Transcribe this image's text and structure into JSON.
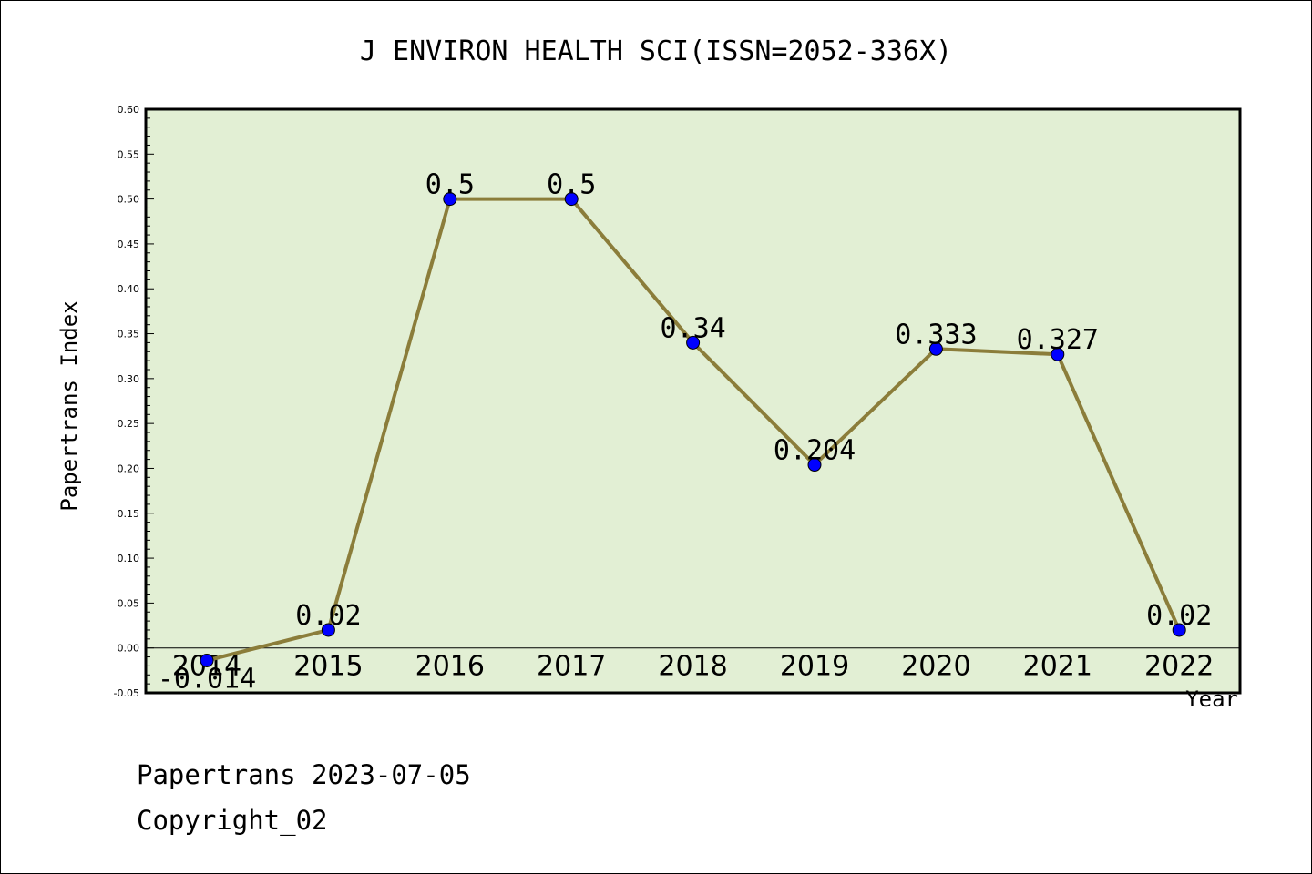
{
  "chart_data": {
    "type": "line",
    "title": "J ENVIRON HEALTH SCI(ISSN=2052-336X)",
    "xlabel": "Year",
    "ylabel": "Papertrans Index",
    "categories": [
      "2014",
      "2015",
      "2016",
      "2017",
      "2018",
      "2019",
      "2020",
      "2021",
      "2022"
    ],
    "series": [
      {
        "values": [
          -0.014,
          0.02,
          0.5,
          0.5,
          0.34,
          0.204,
          0.333,
          0.327,
          0.02
        ],
        "labels": [
          "-0.014",
          "0.02",
          "0.5",
          "0.5",
          "0.34",
          "0.204",
          "0.333",
          "0.327",
          "0.02"
        ]
      }
    ],
    "ylim": [
      -0.05,
      0.6
    ],
    "yticks": [
      "-0.05",
      "0.00",
      "0.05",
      "0.10",
      "0.15",
      "0.20",
      "0.25",
      "0.30",
      "0.35",
      "0.40",
      "0.45",
      "0.50",
      "0.55",
      "0.60"
    ],
    "grid": false,
    "colors": {
      "plot_background": "#e2efd4",
      "line": "#8b7d3a",
      "marker": "#0000ff"
    }
  },
  "footer": {
    "date_line": "Papertrans 2023-07-05",
    "copyright_line": "Copyright_02"
  }
}
